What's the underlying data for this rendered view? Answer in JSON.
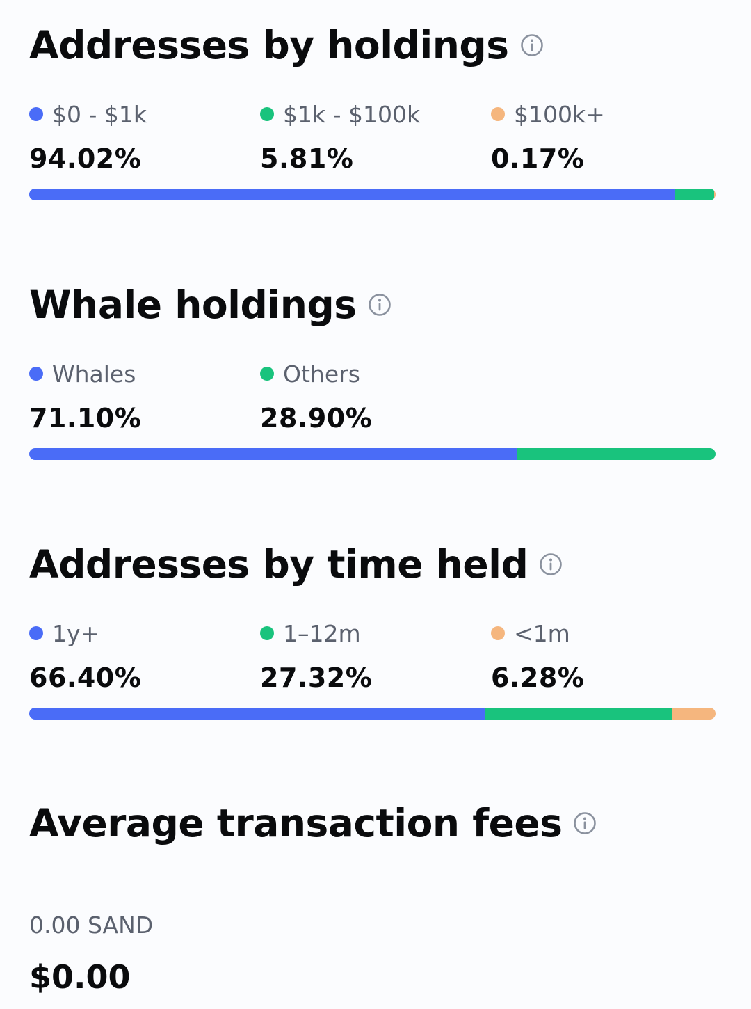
{
  "colors": {
    "blue": "#4a6cf7",
    "green": "#19c37d",
    "orange": "#f5b67e"
  },
  "holdings": {
    "title": "Addresses by holdings",
    "info_icon": "info-circle-icon",
    "items": [
      {
        "label": "$0 - $1k",
        "value": "94.02%",
        "percent": 94.02,
        "color": "#4a6cf7"
      },
      {
        "label": "$1k - $100k",
        "value": "5.81%",
        "percent": 5.81,
        "color": "#19c37d"
      },
      {
        "label": "$100k+",
        "value": "0.17%",
        "percent": 0.17,
        "color": "#f5b67e"
      }
    ]
  },
  "whales": {
    "title": "Whale holdings",
    "info_icon": "info-circle-icon",
    "items": [
      {
        "label": "Whales",
        "value": "71.10%",
        "percent": 71.1,
        "color": "#4a6cf7"
      },
      {
        "label": "Others",
        "value": "28.90%",
        "percent": 28.9,
        "color": "#19c37d"
      }
    ]
  },
  "time_held": {
    "title": "Addresses by time held",
    "info_icon": "info-circle-icon",
    "items": [
      {
        "label": "1y+",
        "value": "66.40%",
        "percent": 66.4,
        "color": "#4a6cf7"
      },
      {
        "label": "1–12m",
        "value": "27.32%",
        "percent": 27.32,
        "color": "#19c37d"
      },
      {
        "label": "<1m",
        "value": "6.28%",
        "percent": 6.28,
        "color": "#f5b67e"
      }
    ]
  },
  "fees": {
    "title": "Average transaction fees",
    "info_icon": "info-circle-icon",
    "token_amount": "0.00 SAND",
    "usd_amount": "$0.00"
  }
}
